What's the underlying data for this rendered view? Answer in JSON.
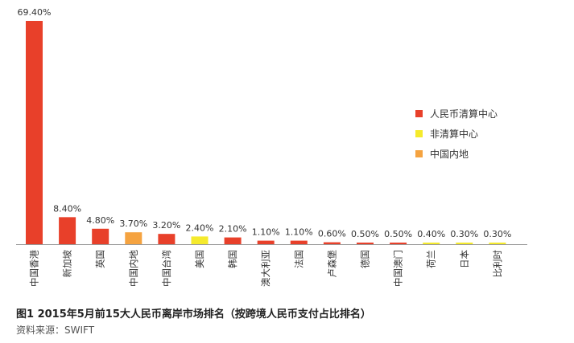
{
  "chart_data": {
    "type": "bar",
    "categories": [
      "中国香港",
      "新加坡",
      "英国",
      "中国内地",
      "中国台湾",
      "美国",
      "韩国",
      "澳大利亚",
      "法国",
      "卢森堡",
      "德国",
      "中国澳门",
      "荷兰",
      "日本",
      "比利时"
    ],
    "values": [
      69.4,
      8.4,
      4.8,
      3.7,
      3.2,
      2.4,
      2.1,
      1.1,
      1.1,
      0.6,
      0.5,
      0.5,
      0.4,
      0.3,
      0.3
    ],
    "value_labels": [
      "69.40%",
      "8.40%",
      "4.80%",
      "3.70%",
      "3.20%",
      "2.40%",
      "2.10%",
      "1.10%",
      "1.10%",
      "0.60%",
      "0.50%",
      "0.50%",
      "0.40%",
      "0.30%",
      "0.30%"
    ],
    "groups": [
      "clearing",
      "clearing",
      "clearing",
      "mainland",
      "clearing",
      "non_clearing",
      "clearing",
      "clearing",
      "clearing",
      "clearing",
      "clearing",
      "clearing",
      "non_clearing",
      "non_clearing",
      "non_clearing"
    ],
    "legend": [
      {
        "key": "clearing",
        "label": "人民币清算中心",
        "color": "#e8402a"
      },
      {
        "key": "non_clearing",
        "label": "非清算中心",
        "color": "#f5ea2c"
      },
      {
        "key": "mainland",
        "label": "中国内地",
        "color": "#f5a340"
      }
    ],
    "legend_position": "right",
    "ylim": [
      0,
      70
    ],
    "grid": false,
    "unit": "%"
  },
  "caption": "图1  2015年5月前15大人民币离岸市场排名（按跨境人民币支付占比排名）",
  "source": "资料来源：SWIFT",
  "colors": {
    "axis": "#999999"
  }
}
